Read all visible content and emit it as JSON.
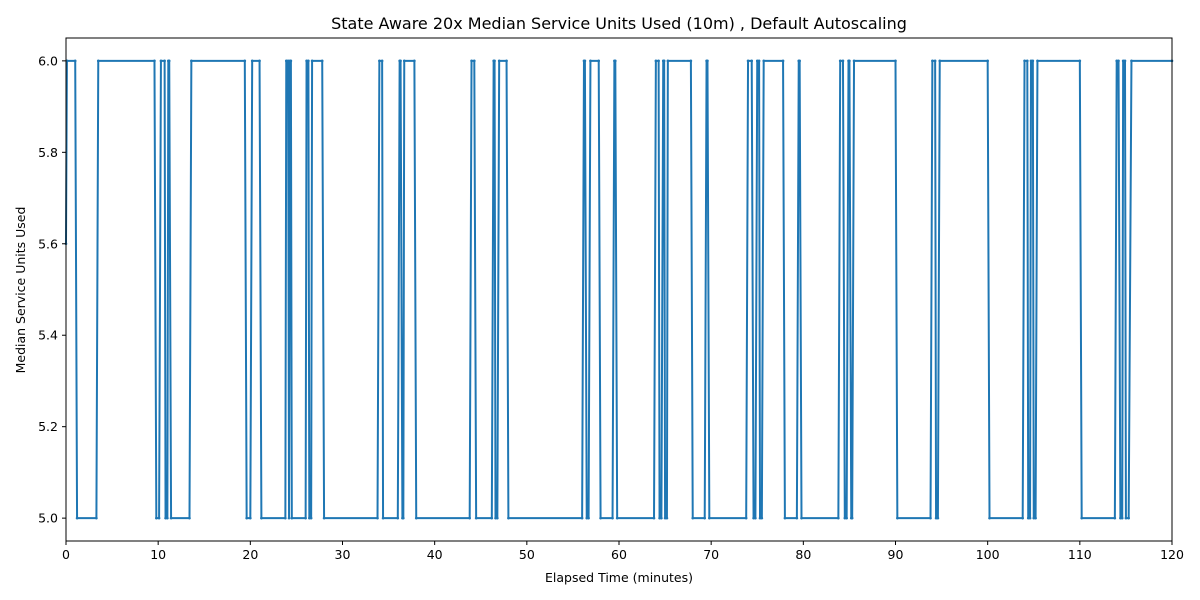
{
  "chart_data": {
    "type": "line",
    "title": "State Aware 20x Median Service Units Used (10m) , Default Autoscaling",
    "xlabel": "Elapsed Time (minutes)",
    "ylabel": "Median Service Units Used",
    "xlim": [
      0,
      120
    ],
    "ylim": [
      4.95,
      6.05
    ],
    "xticks": [
      0,
      10,
      20,
      30,
      40,
      50,
      60,
      70,
      80,
      90,
      100,
      110,
      120
    ],
    "yticks": [
      5.0,
      5.2,
      5.4,
      5.6,
      5.8,
      6.0
    ],
    "xtick_labels": [
      "0",
      "10",
      "20",
      "30",
      "40",
      "50",
      "60",
      "70",
      "80",
      "90",
      "100",
      "110",
      "120"
    ],
    "ytick_labels": [
      "5.0",
      "5.2",
      "5.4",
      "5.6",
      "5.8",
      "6.0"
    ],
    "grid": false,
    "legend": "none",
    "series_color": "#1f77b4",
    "series": [
      {
        "values": [
          [
            0,
            5.6
          ],
          [
            0.1,
            6.0
          ],
          [
            1.0,
            6.0
          ],
          [
            1.2,
            5.0
          ],
          [
            3.3,
            5.0
          ],
          [
            3.5,
            6.0
          ],
          [
            9.6,
            6.0
          ],
          [
            9.8,
            5.0
          ],
          [
            10.1,
            5.0
          ],
          [
            10.3,
            6.0
          ],
          [
            10.7,
            6.0
          ],
          [
            10.8,
            5.0
          ],
          [
            11.0,
            5.0
          ],
          [
            11.1,
            6.0
          ],
          [
            11.2,
            6.0
          ],
          [
            11.4,
            5.0
          ],
          [
            13.4,
            5.0
          ],
          [
            13.6,
            6.0
          ],
          [
            19.4,
            6.0
          ],
          [
            19.6,
            5.0
          ],
          [
            20.0,
            5.0
          ],
          [
            20.2,
            6.0
          ],
          [
            21.0,
            6.0
          ],
          [
            21.2,
            5.0
          ],
          [
            23.8,
            5.0
          ],
          [
            23.9,
            6.0
          ],
          [
            24.1,
            6.0
          ],
          [
            24.2,
            5.0
          ],
          [
            24.3,
            6.0
          ],
          [
            24.4,
            6.0
          ],
          [
            24.5,
            5.0
          ],
          [
            26.0,
            5.0
          ],
          [
            26.1,
            6.0
          ],
          [
            26.3,
            6.0
          ],
          [
            26.4,
            5.0
          ],
          [
            26.6,
            5.0
          ],
          [
            26.7,
            6.0
          ],
          [
            27.8,
            6.0
          ],
          [
            28.0,
            5.0
          ],
          [
            33.8,
            5.0
          ],
          [
            34.0,
            6.0
          ],
          [
            34.3,
            6.0
          ],
          [
            34.4,
            5.0
          ],
          [
            36.0,
            5.0
          ],
          [
            36.2,
            6.0
          ],
          [
            36.3,
            6.0
          ],
          [
            36.5,
            5.0
          ],
          [
            36.6,
            5.0
          ],
          [
            36.7,
            6.0
          ],
          [
            37.8,
            6.0
          ],
          [
            38.0,
            5.0
          ],
          [
            43.8,
            5.0
          ],
          [
            44.0,
            6.0
          ],
          [
            44.3,
            6.0
          ],
          [
            44.5,
            5.0
          ],
          [
            46.2,
            5.0
          ],
          [
            46.4,
            6.0
          ],
          [
            46.5,
            6.0
          ],
          [
            46.6,
            5.0
          ],
          [
            46.8,
            5.0
          ],
          [
            47.0,
            6.0
          ],
          [
            47.8,
            6.0
          ],
          [
            48.0,
            5.0
          ],
          [
            56.0,
            5.0
          ],
          [
            56.2,
            6.0
          ],
          [
            56.3,
            6.0
          ],
          [
            56.5,
            5.0
          ],
          [
            56.7,
            5.0
          ],
          [
            56.9,
            6.0
          ],
          [
            57.8,
            6.0
          ],
          [
            58.0,
            5.0
          ],
          [
            59.3,
            5.0
          ],
          [
            59.5,
            6.0
          ],
          [
            59.6,
            6.0
          ],
          [
            59.8,
            5.0
          ],
          [
            63.8,
            5.0
          ],
          [
            64.0,
            6.0
          ],
          [
            64.3,
            6.0
          ],
          [
            64.4,
            5.0
          ],
          [
            64.6,
            5.0
          ],
          [
            64.8,
            6.0
          ],
          [
            64.9,
            6.0
          ],
          [
            65.0,
            5.0
          ],
          [
            65.2,
            5.0
          ],
          [
            65.3,
            6.0
          ],
          [
            67.8,
            6.0
          ],
          [
            68.0,
            5.0
          ],
          [
            69.3,
            5.0
          ],
          [
            69.5,
            6.0
          ],
          [
            69.6,
            6.0
          ],
          [
            69.8,
            5.0
          ],
          [
            73.8,
            5.0
          ],
          [
            74.0,
            6.0
          ],
          [
            74.4,
            6.0
          ],
          [
            74.6,
            5.0
          ],
          [
            74.8,
            5.0
          ],
          [
            75.0,
            6.0
          ],
          [
            75.2,
            6.0
          ],
          [
            75.3,
            5.0
          ],
          [
            75.5,
            5.0
          ],
          [
            75.7,
            6.0
          ],
          [
            77.8,
            6.0
          ],
          [
            78.0,
            5.0
          ],
          [
            79.3,
            5.0
          ],
          [
            79.5,
            6.0
          ],
          [
            79.6,
            6.0
          ],
          [
            79.8,
            5.0
          ],
          [
            83.8,
            5.0
          ],
          [
            84.0,
            6.0
          ],
          [
            84.3,
            6.0
          ],
          [
            84.5,
            5.0
          ],
          [
            84.7,
            5.0
          ],
          [
            84.9,
            6.0
          ],
          [
            85.0,
            6.0
          ],
          [
            85.2,
            5.0
          ],
          [
            85.3,
            5.0
          ],
          [
            85.5,
            6.0
          ],
          [
            90.0,
            6.0
          ],
          [
            90.2,
            5.0
          ],
          [
            93.8,
            5.0
          ],
          [
            94.0,
            6.0
          ],
          [
            94.3,
            6.0
          ],
          [
            94.4,
            5.0
          ],
          [
            94.6,
            5.0
          ],
          [
            94.8,
            6.0
          ],
          [
            100.0,
            6.0
          ],
          [
            100.2,
            5.0
          ],
          [
            103.8,
            5.0
          ],
          [
            104.0,
            6.0
          ],
          [
            104.3,
            6.0
          ],
          [
            104.4,
            5.0
          ],
          [
            104.6,
            5.0
          ],
          [
            104.7,
            6.0
          ],
          [
            104.9,
            6.0
          ],
          [
            105.0,
            5.0
          ],
          [
            105.2,
            5.0
          ],
          [
            105.4,
            6.0
          ],
          [
            110.0,
            6.0
          ],
          [
            110.2,
            5.0
          ],
          [
            113.8,
            5.0
          ],
          [
            114.0,
            6.0
          ],
          [
            114.2,
            6.0
          ],
          [
            114.4,
            5.0
          ],
          [
            114.6,
            5.0
          ],
          [
            114.7,
            6.0
          ],
          [
            114.9,
            6.0
          ],
          [
            115.0,
            5.0
          ],
          [
            115.3,
            5.0
          ],
          [
            115.6,
            6.0
          ],
          [
            120.0,
            6.0
          ]
        ]
      }
    ]
  }
}
